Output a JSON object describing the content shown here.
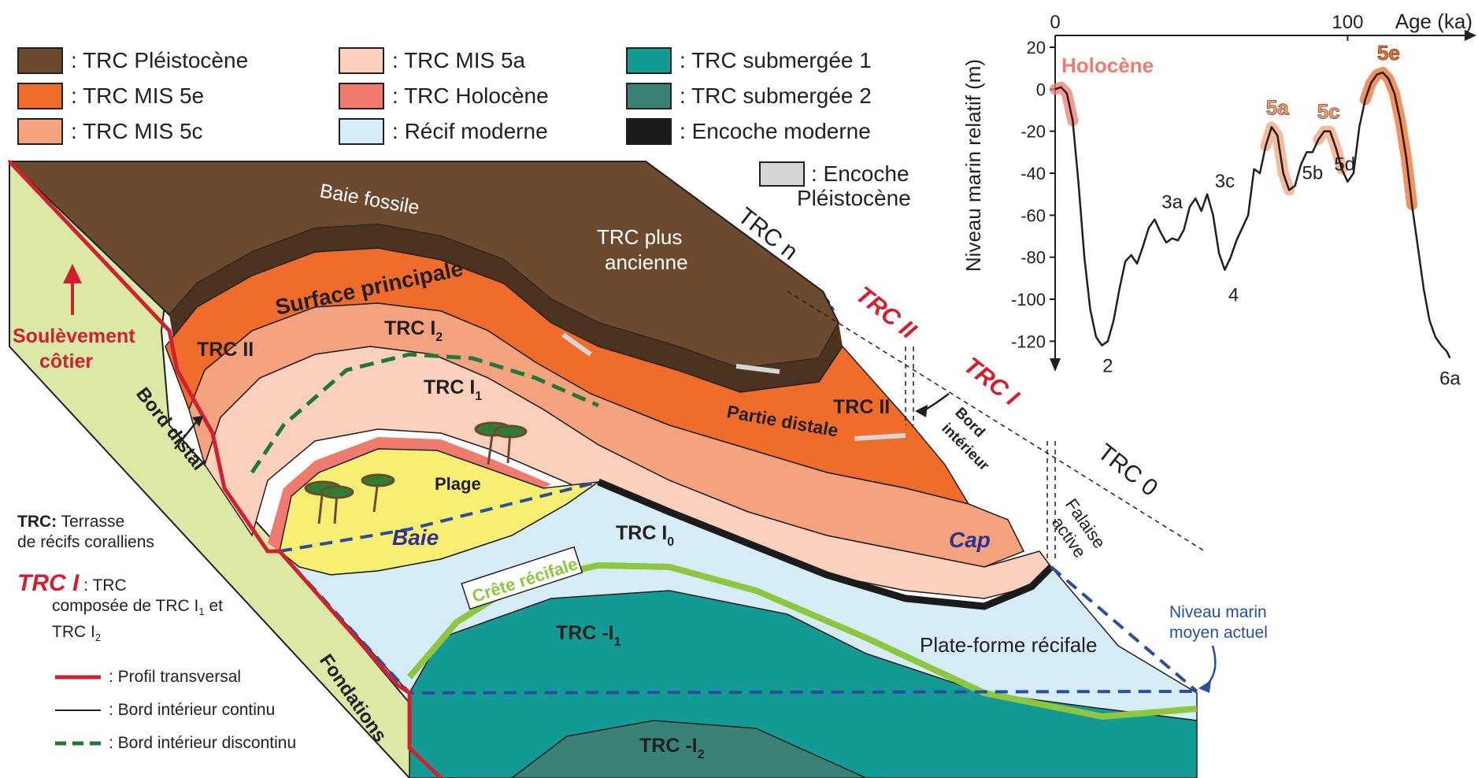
{
  "colors": {
    "pleistocene": "#6b4a30",
    "pleistocene_dark": "#4c3320",
    "mis5e": "#ef6c2a",
    "mis5c": "#f4a37e",
    "mis5a": "#fbd1bd",
    "holocene": "#ef7a6e",
    "modern_reef": "#d6ecf6",
    "submerged1": "#139a95",
    "submerged2": "#3a8178",
    "notch_modern": "#1b1b1b",
    "notch_pleistocene": "#d6d6d6",
    "foundation": "#dbe8a6",
    "beach": "#f7ef73",
    "profile_red": "#d1202f",
    "crest_green": "#8dc63f",
    "discontinuous_green": "#1f7a3a",
    "sea_blue": "#2a4e9e",
    "label_red": "#d1202f",
    "label_navy": "#2e3192"
  },
  "legend": [
    {
      "key": "pleistocene",
      "label": "TRC Pléistocène"
    },
    {
      "key": "mis5e",
      "label": "TRC MIS 5e"
    },
    {
      "key": "mis5c",
      "label": "TRC MIS 5c"
    },
    {
      "key": "mis5a",
      "label": "TRC MIS 5a"
    },
    {
      "key": "holocene",
      "label": "TRC Holocène"
    },
    {
      "key": "modern_reef",
      "label": "Récif moderne"
    },
    {
      "key": "submerged1",
      "label": "TRC submergée 1"
    },
    {
      "key": "submerged2",
      "label": "TRC submergée 2"
    },
    {
      "key": "notch_modern",
      "label": "Encoche moderne"
    }
  ],
  "legend_pleistocene_notch": {
    "line1": ": Encoche",
    "line2": "Pléistocène"
  },
  "notes": {
    "trc_abbrev": "TRC:",
    "trc_def_1": "Terrasse",
    "trc_def_2": "de récifs coralliens",
    "trc1_label": "TRC I",
    "trc1_def_1": ": TRC",
    "trc1_def_2": "composée de TRC I",
    "trc1_def_2b": "1",
    "trc1_def_2c": " et",
    "trc1_def_3": "TRC I",
    "trc1_def_3b": "2"
  },
  "line_keys": [
    {
      "style": "profile",
      "label": ": Profil transversal"
    },
    {
      "style": "continuous",
      "label": ": Bord intérieur continu"
    },
    {
      "style": "discontinuous",
      "label": ": Bord intérieur discontinu"
    }
  ],
  "diagram_labels": {
    "baie_fossile": "Baie fossile",
    "trc_plus_ancienne_1": "TRC plus",
    "trc_plus_ancienne_2": "ancienne",
    "surface_principale": "Surface principale",
    "trc_ii_left": "TRC II",
    "trc_i2": "TRC I",
    "trc_i2_sub": "2",
    "trc_i1": "TRC I",
    "trc_i1_sub": "1",
    "plage": "Plage",
    "baie": "Baie",
    "cap": "Cap",
    "trc_i0": "TRC I",
    "trc_i0_sub": "0",
    "partie_distale": "Partie distale",
    "trc_ii_right": "TRC II",
    "bord_interieur_1": "Bord",
    "bord_interieur_2": "intérieur",
    "trc_n": "TRC n",
    "trc_ii_sect": "TRC II",
    "trc_i_sect": "TRC I",
    "trc_0_sect": "TRC 0",
    "falaise_1": "Falaise",
    "falaise_2": "active",
    "crete_recifale": "Crête récifale",
    "plateforme": "Plate-forme récifale",
    "trc_minus_i1": "TRC -I",
    "trc_minus_i1_sub": "1",
    "trc_minus_i2": "TRC -I",
    "trc_minus_i2_sub": "2",
    "niveau_marin_1": "Niveau marin",
    "niveau_marin_2": "moyen actuel",
    "soulevement_1": "Soulèvement",
    "soulevement_2": "côtier",
    "bord_distal": "Bord distal",
    "fondations": "Fondations"
  },
  "chart_data": {
    "type": "line",
    "title": "",
    "xlabel": "Age (ka)",
    "ylabel": "Niveau marin relatif (m)",
    "xlim": [
      0,
      140
    ],
    "ylim": [
      -130,
      20
    ],
    "x_ticks": [
      0,
      100
    ],
    "y_ticks": [
      20,
      0,
      -20,
      -40,
      -60,
      -80,
      -100,
      -120
    ],
    "series": [
      {
        "x": [
          0,
          2,
          4,
          6,
          8,
          10,
          12,
          14,
          16,
          18,
          20,
          22,
          24,
          26,
          28,
          30,
          32,
          34,
          36,
          38,
          40,
          42,
          44,
          46,
          48,
          50,
          52,
          54,
          56,
          58,
          60,
          62,
          64,
          66,
          68,
          70,
          72,
          74,
          76,
          78,
          80,
          82,
          84,
          86,
          88,
          90,
          92,
          94,
          96,
          98,
          100,
          102,
          104,
          106,
          108,
          110,
          112,
          114,
          116,
          118,
          120,
          122,
          124,
          126,
          128,
          130,
          132,
          134,
          135
        ],
        "y": [
          0,
          1,
          -2,
          -15,
          -45,
          -80,
          -105,
          -118,
          -122,
          -120,
          -110,
          -95,
          -82,
          -79,
          -83,
          -75,
          -66,
          -62,
          -68,
          -73,
          -71,
          -72,
          -67,
          -56,
          -52,
          -58,
          -50,
          -60,
          -78,
          -86,
          -80,
          -72,
          -66,
          -60,
          -38,
          -40,
          -27,
          -18,
          -22,
          -40,
          -48,
          -46,
          -36,
          -30,
          -30,
          -24,
          -20,
          -20,
          -28,
          -38,
          -44,
          -40,
          -18,
          -5,
          3,
          7,
          8,
          5,
          -2,
          -15,
          -32,
          -55,
          -75,
          -95,
          -110,
          -118,
          -122,
          -125,
          -128
        ]
      }
    ],
    "highlights": [
      {
        "label": "Holocène",
        "x_range": [
          0,
          6
        ],
        "color": "#ef7a6e"
      },
      {
        "label": "5a",
        "x_range": [
          72,
          80
        ],
        "color": "#f4a37e"
      },
      {
        "label": "5c",
        "x_range": [
          89,
          98
        ],
        "color": "#f4a37e"
      },
      {
        "label": "5e",
        "x_range": [
          106,
          122
        ],
        "color": "#ef6c2a"
      }
    ],
    "annotations": [
      {
        "label": "2",
        "x": 18,
        "y": -122
      },
      {
        "label": "3a",
        "x": 40,
        "y": -62
      },
      {
        "label": "3c",
        "x": 58,
        "y": -52
      },
      {
        "label": "4",
        "x": 61,
        "y": -86
      },
      {
        "label": "5b",
        "x": 88,
        "y": -48
      },
      {
        "label": "5d",
        "x": 99,
        "y": -44
      },
      {
        "label": "6a",
        "x": 135,
        "y": -128
      }
    ]
  }
}
